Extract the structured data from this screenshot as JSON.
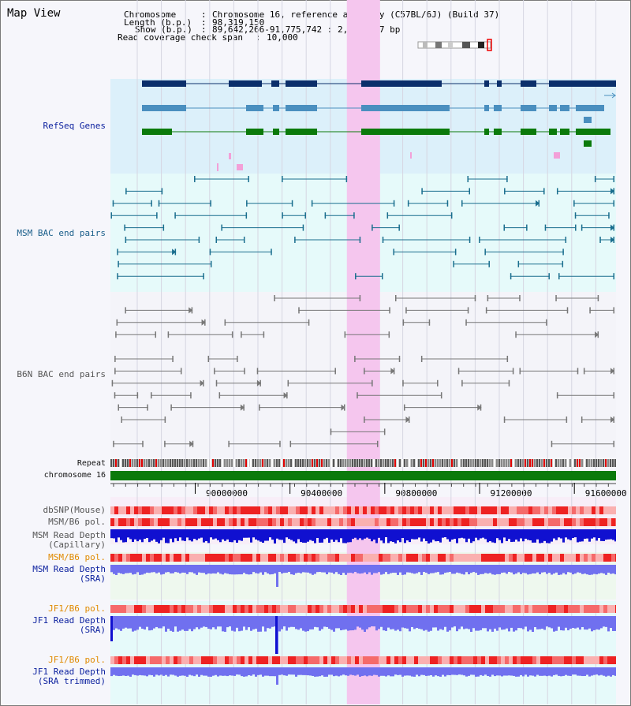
{
  "view": {
    "title": "Map View"
  },
  "info": {
    "chromosome_key": "Chromosome",
    "chromosome_val": "Chromosome 16, reference assembly (C57BL/6J) (Build 37)",
    "length_key": "Length (b.p.)",
    "length_val": "98,319,150",
    "show_key": "Show (b.p.)",
    "show_val": "89,642,266-91,775,742 : 2,133,477 bp",
    "coverage_key": "Read coverage check span",
    "coverage_val": "10,000"
  },
  "tracks": {
    "refseq": "RefSeq Genes",
    "msm_bac": "MSM BAC end pairs",
    "b6n_bac": "B6N BAC end pairs",
    "repeat": "Repeat",
    "chromosome": "chromosome 16",
    "dbsnp": "dbSNP(Mouse)",
    "msm_b6_pol_1": "MSM/B6 pol.",
    "msm_depth_cap_1": "MSM Read Depth",
    "msm_depth_cap_2": "(Capillary)",
    "msm_b6_pol_2": "MSM/B6 pol.",
    "msm_depth_sra_1": "MSM Read Depth",
    "msm_depth_sra_2": "(SRA)",
    "jf1_b6_pol_1": "JF1/B6 pol.",
    "jf1_depth_sra_1": "JF1 Read Depth",
    "jf1_depth_sra_2": "(SRA)",
    "jf1_b6_pol_2": "JF1/B6 pol.",
    "jf1_depth_trim_1": "JF1 Read Depth",
    "jf1_depth_trim_2": "(SRA trimmed)"
  },
  "axis": {
    "ticks": [
      "90000000",
      "90400000",
      "90800000",
      "91200000",
      "91600000"
    ],
    "tick_values": [
      90000000,
      90400000,
      90800000,
      91200000,
      91600000
    ],
    "range": [
      89642266,
      91775742
    ]
  },
  "highlight": {
    "color": "#f5c6ee",
    "start": 90640000,
    "end": 90780000
  },
  "colors": {
    "gene_navy": "#0b2f6b",
    "gene_steel": "#4a8fbf",
    "gene_green": "#0b7a0b",
    "bac_msm": "#1a6e8e",
    "bac_b6n": "#777777",
    "chromosome": "#0b7a0b",
    "depth_blue": "#1010d0",
    "depth_light": "#7070ef",
    "label_blue": "#0a1f9e",
    "label_orange": "#e08a00"
  },
  "icons": [
    "chromosome-ideogram-icon"
  ]
}
